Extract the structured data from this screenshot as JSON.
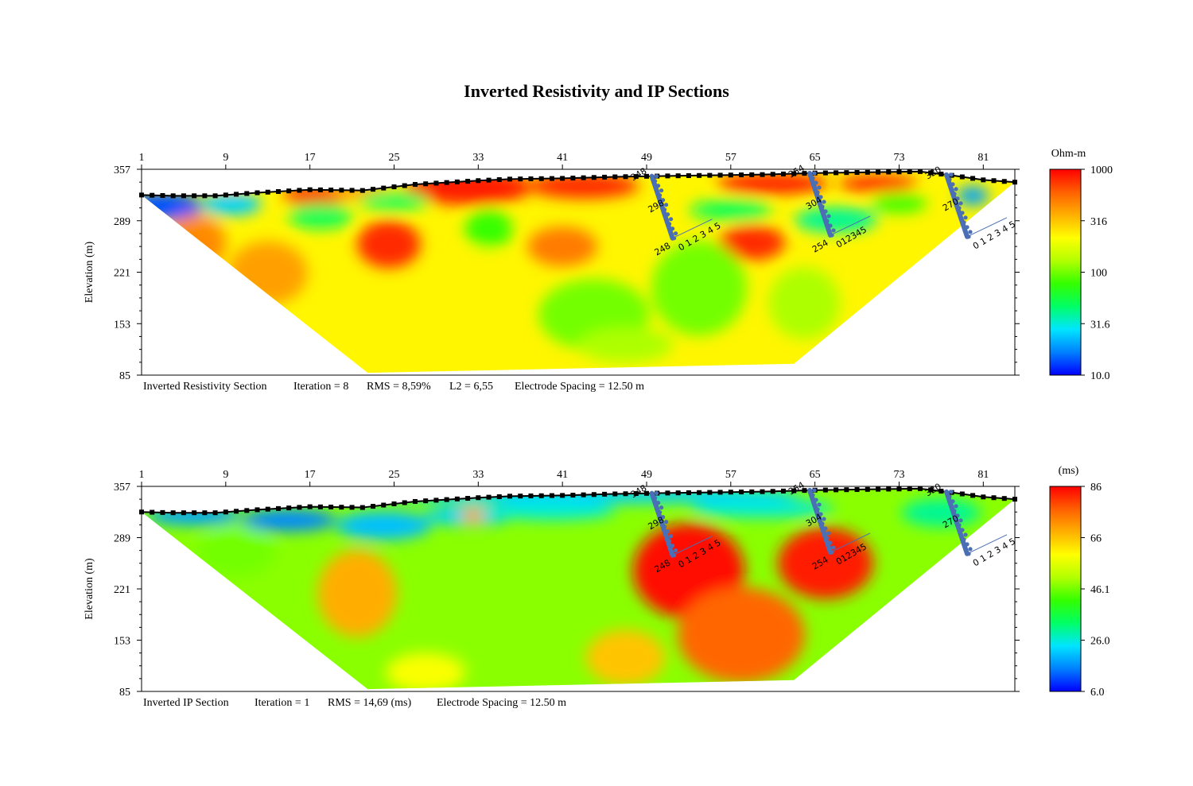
{
  "title": "Inverted Resistivity and IP Sections",
  "colors": {
    "scale": [
      "#0000ff",
      "#0080ff",
      "#00e5ff",
      "#00ff66",
      "#33ff00",
      "#b3ff00",
      "#ffff00",
      "#ffb000",
      "#ff6000",
      "#ff0000"
    ],
    "borehole": "#4a6fb5",
    "electrode": "#000000"
  },
  "chart_data": [
    {
      "type": "heatmap",
      "name": "resistivity",
      "title": "Inverted Resistivity Section",
      "xlabel": "",
      "ylabel": "Elevation (m)",
      "x_ticks": [
        "1",
        "9",
        "17",
        "25",
        "33",
        "41",
        "49",
        "57",
        "65",
        "73",
        "81"
      ],
      "x_tick_values": [
        1,
        9,
        17,
        25,
        33,
        41,
        49,
        57,
        65,
        73,
        81
      ],
      "xlim": [
        1,
        84
      ],
      "y_ticks": [
        "357",
        "289",
        "221",
        "153",
        "85"
      ],
      "y_tick_values": [
        357,
        289,
        221,
        153,
        85
      ],
      "ylim": [
        85,
        357
      ],
      "colorbar": {
        "unit": "Ohm-m",
        "labels": [
          "1000",
          "316",
          "100",
          "31.6",
          "10.0"
        ],
        "values": [
          1000,
          316,
          100,
          31.6,
          10.0
        ],
        "scale": "log"
      },
      "info": {
        "label": "Inverted Resistivity Section",
        "iteration": "Iteration = 8",
        "rms": "RMS = 8,59%",
        "l2": "L2 = 6,55",
        "spacing": "Electrode Spacing = 12.50 m"
      },
      "topography": {
        "electrode": [
          1,
          4,
          8,
          12,
          17,
          22,
          27,
          33,
          36,
          41,
          46,
          50,
          55,
          60,
          65,
          70,
          75,
          78,
          81,
          84
        ],
        "elevation": [
          323,
          322,
          322,
          326,
          330,
          329,
          337,
          342,
          344,
          345,
          347,
          348,
          349,
          350,
          352,
          353,
          354,
          349,
          343,
          340
        ]
      },
      "depth_outline": {
        "electrode": [
          1,
          22.5,
          63,
          84
        ],
        "elevation": [
          323,
          88,
          100,
          340
        ]
      },
      "anomalies": [
        {
          "x": 9,
          "elev": 342,
          "rx": 28,
          "ry": 10,
          "level": 0.95
        },
        {
          "x": 17.5,
          "elev": 322,
          "rx": 40,
          "ry": 13,
          "level": 0.95
        },
        {
          "x": 22,
          "elev": 328,
          "rx": 40,
          "ry": 10,
          "level": 0.8
        },
        {
          "x": 32,
          "elev": 333,
          "rx": 80,
          "ry": 22,
          "level": 0.97
        },
        {
          "x": 43,
          "elev": 335,
          "rx": 70,
          "ry": 16,
          "level": 0.95
        },
        {
          "x": 61,
          "elev": 338,
          "rx": 70,
          "ry": 13,
          "level": 0.97
        },
        {
          "x": 71,
          "elev": 338,
          "rx": 50,
          "ry": 10,
          "level": 0.97
        },
        {
          "x": 3,
          "elev": 308,
          "rx": 50,
          "ry": 18,
          "level": 0.07
        },
        {
          "x": 9.5,
          "elev": 311,
          "rx": 38,
          "ry": 14,
          "level": 0.2
        },
        {
          "x": 18,
          "elev": 295,
          "rx": 40,
          "ry": 16,
          "level": 0.35
        },
        {
          "x": 25,
          "elev": 315,
          "rx": 44,
          "ry": 12,
          "level": 0.35
        },
        {
          "x": 34,
          "elev": 278,
          "rx": 30,
          "ry": 25,
          "level": 0.45
        },
        {
          "x": 24.5,
          "elev": 258,
          "rx": 40,
          "ry": 30,
          "level": 0.95
        },
        {
          "x": 41,
          "elev": 255,
          "rx": 44,
          "ry": 25,
          "level": 0.85
        },
        {
          "x": 59,
          "elev": 260,
          "rx": 42,
          "ry": 22,
          "level": 0.95
        },
        {
          "x": 57,
          "elev": 303,
          "rx": 52,
          "ry": 13,
          "level": 0.35
        },
        {
          "x": 67,
          "elev": 290,
          "rx": 52,
          "ry": 16,
          "level": 0.3
        },
        {
          "x": 80,
          "elev": 322,
          "rx": 20,
          "ry": 12,
          "level": 0.15
        },
        {
          "x": 73,
          "elev": 312,
          "rx": 35,
          "ry": 12,
          "level": 0.45
        },
        {
          "x": 54,
          "elev": 200,
          "rx": 60,
          "ry": 60,
          "level": 0.5
        },
        {
          "x": 44,
          "elev": 165,
          "rx": 70,
          "ry": 45,
          "level": 0.5
        },
        {
          "x": 64,
          "elev": 180,
          "rx": 45,
          "ry": 45,
          "level": 0.55
        },
        {
          "x": 47,
          "elev": 125,
          "rx": 60,
          "ry": 22,
          "level": 0.55
        },
        {
          "x": 6,
          "elev": 260,
          "rx": 40,
          "ry": 35,
          "level": 0.83
        },
        {
          "x": 13,
          "elev": 220,
          "rx": 50,
          "ry": 40,
          "level": 0.8
        },
        {
          "x": 33,
          "elev": 220,
          "rx": 40,
          "ry": 30,
          "level": 0.68
        }
      ],
      "background_level": 0.68,
      "boreholes": [
        {
          "electrode": 49.5,
          "top_label": "348",
          "mid_label": "298",
          "bottom_label": "248",
          "scale": "0 1 2 3 4 5"
        },
        {
          "electrode": 64.5,
          "top_label": "354",
          "mid_label": "304",
          "bottom_label": "254",
          "scale": "012345"
        },
        {
          "electrode": 77.5,
          "top_label": "320",
          "mid_label": "270",
          "bottom_label": "",
          "scale": "0 1 2 3 4 5"
        }
      ]
    },
    {
      "type": "heatmap",
      "name": "ip",
      "title": "Inverted IP Section",
      "xlabel": "",
      "ylabel": "Elevation (m)",
      "x_ticks": [
        "1",
        "9",
        "17",
        "25",
        "33",
        "41",
        "49",
        "57",
        "65",
        "73",
        "81"
      ],
      "x_tick_values": [
        1,
        9,
        17,
        25,
        33,
        41,
        49,
        57,
        65,
        73,
        81
      ],
      "xlim": [
        1,
        84
      ],
      "y_ticks": [
        "357",
        "289",
        "221",
        "153",
        "85"
      ],
      "y_tick_values": [
        357,
        289,
        221,
        153,
        85
      ],
      "ylim": [
        85,
        357
      ],
      "colorbar": {
        "unit": "(ms)",
        "labels": [
          "86",
          "66",
          "46.1",
          "26.0",
          "6.0"
        ],
        "values": [
          86,
          66,
          46.1,
          26.0,
          6.0
        ],
        "scale": "linear"
      },
      "info": {
        "label": "Inverted IP Section",
        "iteration": "Iteration = 1",
        "rms": "RMS = 14,69 (ms)",
        "l2": "",
        "spacing": "Electrode Spacing = 12.50 m"
      },
      "topography": {
        "electrode": [
          1,
          4,
          8,
          12,
          17,
          22,
          27,
          33,
          36,
          41,
          46,
          50,
          55,
          60,
          65,
          70,
          75,
          78,
          81,
          84
        ],
        "elevation": [
          323,
          322,
          322,
          326,
          330,
          329,
          337,
          342,
          344,
          345,
          347,
          348,
          349,
          350,
          352,
          353,
          354,
          349,
          343,
          340
        ]
      },
      "depth_outline": {
        "electrode": [
          1,
          22.5,
          63,
          84
        ],
        "elevation": [
          323,
          88,
          100,
          340
        ]
      },
      "anomalies": [
        {
          "x": 44,
          "elev": 346,
          "rx": 260,
          "ry": 11,
          "level": 0.2
        },
        {
          "x": 6,
          "elev": 318,
          "rx": 60,
          "ry": 12,
          "level": 0.15
        },
        {
          "x": 15,
          "elev": 312,
          "rx": 60,
          "ry": 14,
          "level": 0.12
        },
        {
          "x": 24,
          "elev": 305,
          "rx": 60,
          "ry": 18,
          "level": 0.18
        },
        {
          "x": 32,
          "elev": 318,
          "rx": 55,
          "ry": 12,
          "level": 0.2
        },
        {
          "x": 40,
          "elev": 325,
          "rx": 80,
          "ry": 12,
          "level": 0.25
        },
        {
          "x": 60,
          "elev": 328,
          "rx": 90,
          "ry": 12,
          "level": 0.25
        },
        {
          "x": 77,
          "elev": 322,
          "rx": 50,
          "ry": 18,
          "level": 0.3
        },
        {
          "x": 32.5,
          "elev": 318,
          "rx": 14,
          "ry": 9,
          "level": 0.8
        },
        {
          "x": 21.5,
          "elev": 215,
          "rx": 50,
          "ry": 55,
          "level": 0.78
        },
        {
          "x": 53,
          "elev": 245,
          "rx": 70,
          "ry": 60,
          "level": 0.98
        },
        {
          "x": 66,
          "elev": 255,
          "rx": 60,
          "ry": 45,
          "level": 0.97
        },
        {
          "x": 58,
          "elev": 160,
          "rx": 80,
          "ry": 60,
          "level": 0.88
        },
        {
          "x": 47,
          "elev": 130,
          "rx": 50,
          "ry": 35,
          "level": 0.75
        },
        {
          "x": 35,
          "elev": 180,
          "rx": 60,
          "ry": 60,
          "level": 0.52
        },
        {
          "x": 10,
          "elev": 270,
          "rx": 50,
          "ry": 30,
          "level": 0.5
        },
        {
          "x": 28,
          "elev": 110,
          "rx": 50,
          "ry": 25,
          "level": 0.66
        }
      ],
      "background_level": 0.52,
      "boreholes": [
        {
          "electrode": 49.5,
          "top_label": "348",
          "mid_label": "298",
          "bottom_label": "248",
          "scale": "0 1 2 3 4 5"
        },
        {
          "electrode": 64.5,
          "top_label": "354",
          "mid_label": "304",
          "bottom_label": "254",
          "scale": "012345"
        },
        {
          "electrode": 77.5,
          "top_label": "320",
          "mid_label": "270",
          "bottom_label": "",
          "scale": "0 1 2 3 4 5"
        }
      ]
    }
  ]
}
